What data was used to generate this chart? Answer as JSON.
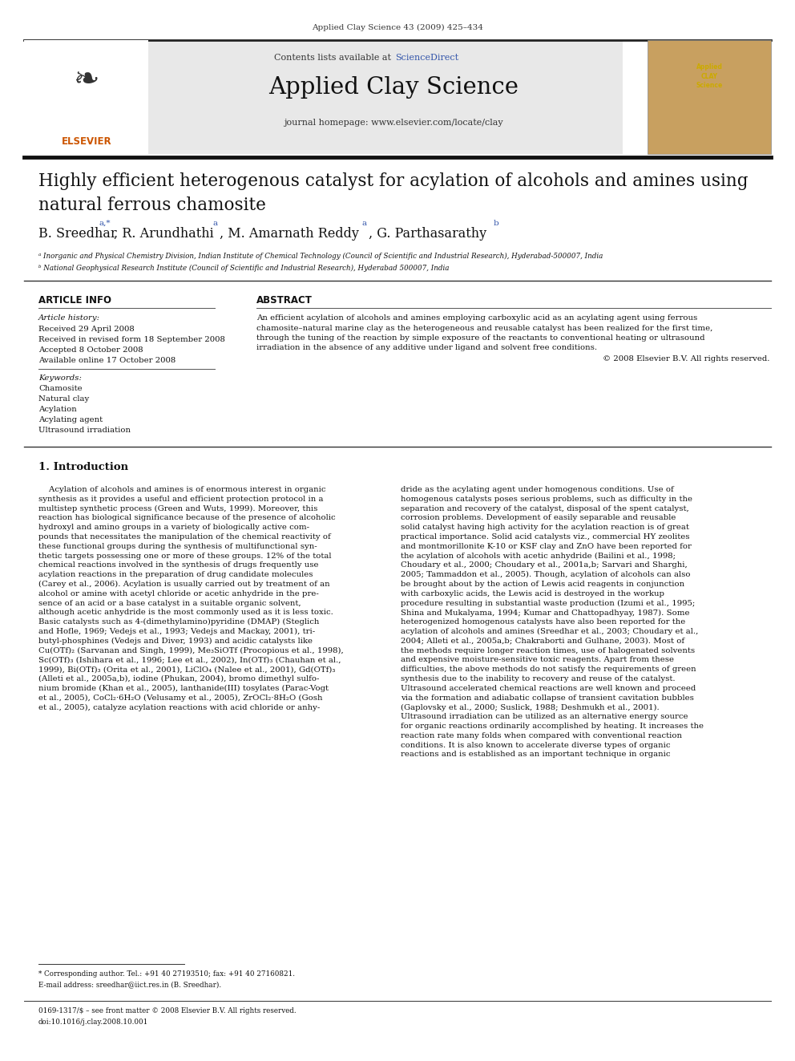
{
  "page_width": 9.92,
  "page_height": 13.23,
  "bg_color": "#ffffff",
  "journal_ref": "Applied Clay Science 43 (2009) 425–434",
  "header_bg": "#e8e8e8",
  "contents_line_plain": "Contents lists available at ",
  "contents_line_link": "ScienceDirect",
  "sciencedirect_color": "#3355aa",
  "journal_name": "Applied Clay Science",
  "journal_homepage": "journal homepage: www.elsevier.com/locate/clay",
  "title": "Highly efficient heterogenous catalyst for acylation of alcohols and amines using\nnatural ferrous chamosite",
  "affil_a": "ᵃ Inorganic and Physical Chemistry Division, Indian Institute of Chemical Technology (Council of Scientific and Industrial Research), Hyderabad-500007, India",
  "affil_b": "ᵇ National Geophysical Research Institute (Council of Scientific and Industrial Research), Hyderabad 500007, India",
  "section_article_info": "ARTICLE INFO",
  "section_abstract": "ABSTRACT",
  "article_history_label": "Article history:",
  "received": "Received 29 April 2008",
  "received_revised": "Received in revised form 18 September 2008",
  "accepted": "Accepted 8 October 2008",
  "available": "Available online 17 October 2008",
  "keywords_label": "Keywords:",
  "keywords": [
    "Chamosite",
    "Natural clay",
    "Acylation",
    "Acylating agent",
    "Ultrasound irradiation"
  ],
  "abstract_text": "An efficient acylation of alcohols and amines employing carboxylic acid as an acylating agent using ferrous chamosite–natural marine clay as the heterogeneous and reusable catalyst has been realized for the first time, through the tuning of the reaction by simple exposure of the reactants to conventional heating or ultrasound irradiation in the absence of any additive under ligand and solvent free conditions.",
  "copyright": "© 2008 Elsevier B.V. All rights reserved.",
  "intro_heading": "1. Introduction",
  "col1_lines": [
    "    Acylation of alcohols and amines is of enormous interest in organic",
    "synthesis as it provides a useful and efficient protection protocol in a",
    "multistep synthetic process (Green and Wuts, 1999). Moreover, this",
    "reaction has biological significance because of the presence of alcoholic",
    "hydroxyl and amino groups in a variety of biologically active com-",
    "pounds that necessitates the manipulation of the chemical reactivity of",
    "these functional groups during the synthesis of multifunctional syn-",
    "thetic targets possessing one or more of these groups. 12% of the total",
    "chemical reactions involved in the synthesis of drugs frequently use",
    "acylation reactions in the preparation of drug candidate molecules",
    "(Carey et al., 2006). Acylation is usually carried out by treatment of an",
    "alcohol or amine with acetyl chloride or acetic anhydride in the pre-",
    "sence of an acid or a base catalyst in a suitable organic solvent,",
    "although acetic anhydride is the most commonly used as it is less toxic.",
    "Basic catalysts such as 4-(dimethylamino)pyridine (DMAP) (Steglich",
    "and Hofle, 1969; Vedejs et al., 1993; Vedejs and Mackay, 2001), tri-",
    "butyl-phosphines (Vedejs and Diver, 1993) and acidic catalysts like",
    "Cu(OTf)₂ (Sarvanan and Singh, 1999), Me₃SiOTf (Procopious et al., 1998),",
    "Sc(OTf)₃ (Ishihara et al., 1996; Lee et al., 2002), In(OTf)₃ (Chauhan et al.,",
    "1999), Bi(OTf)₃ (Orita et al., 2001), LiClO₄ (Nalee et al., 2001), Gd(OTf)₃",
    "(Alleti et al., 2005a,b), iodine (Phukan, 2004), bromo dimethyl sulfo-",
    "nium bromide (Khan et al., 2005), lanthanide(III) tosylates (Parac-Vogt",
    "et al., 2005), CoCl₂·6H₂O (Velusamy et al., 2005), ZrOCl₂·8H₂O (Gosh",
    "et al., 2005), catalyze acylation reactions with acid chloride or anhy-"
  ],
  "col2_lines": [
    "dride as the acylating agent under homogenous conditions. Use of",
    "homogenous catalysts poses serious problems, such as difficulty in the",
    "separation and recovery of the catalyst, disposal of the spent catalyst,",
    "corrosion problems. Development of easily separable and reusable",
    "solid catalyst having high activity for the acylation reaction is of great",
    "practical importance. Solid acid catalysts viz., commercial HY zeolites",
    "and montmorillonite K-10 or KSF clay and ZnO have been reported for",
    "the acylation of alcohols with acetic anhydride (Bailini et al., 1998;",
    "Choudary et al., 2000; Choudary et al., 2001a,b; Sarvari and Sharghi,",
    "2005; Tammaddon et al., 2005). Though, acylation of alcohols can also",
    "be brought about by the action of Lewis acid reagents in conjunction",
    "with carboxylic acids, the Lewis acid is destroyed in the workup",
    "procedure resulting in substantial waste production (Izumi et al., 1995;",
    "Shina and Mukalyama, 1994; Kumar and Chattopadhyay, 1987). Some",
    "heterogenized homogenous catalysts have also been reported for the",
    "acylation of alcohols and amines (Sreedhar et al., 2003; Choudary et al.,",
    "2004; Alleti et al., 2005a,b; Chakraborti and Gulhane, 2003). Most of",
    "the methods require longer reaction times, use of halogenated solvents",
    "and expensive moisture-sensitive toxic reagents. Apart from these",
    "difficulties, the above methods do not satisfy the requirements of green",
    "synthesis due to the inability to recovery and reuse of the catalyst.",
    "Ultrasound accelerated chemical reactions are well known and proceed",
    "via the formation and adiabatic collapse of transient cavitation bubbles",
    "(Gaplovsky et al., 2000; Suslick, 1988; Deshmukh et al., 2001).",
    "Ultrasound irradiation can be utilized as an alternative energy source",
    "for organic reactions ordinarily accomplished by heating. It increases the",
    "reaction rate many folds when compared with conventional reaction",
    "conditions. It is also known to accelerate diverse types of organic",
    "reactions and is established as an important technique in organic"
  ],
  "footnote_star": "* Corresponding author. Tel.: +91 40 27193510; fax: +91 40 27160821.",
  "footnote_email": "E-mail address: sreedhar@iict.res.in (B. Sreedhar).",
  "issn_line": "0169-1317/$ – see front matter © 2008 Elsevier B.V. All rights reserved.",
  "doi_line": "doi:10.1016/j.clay.2008.10.001"
}
